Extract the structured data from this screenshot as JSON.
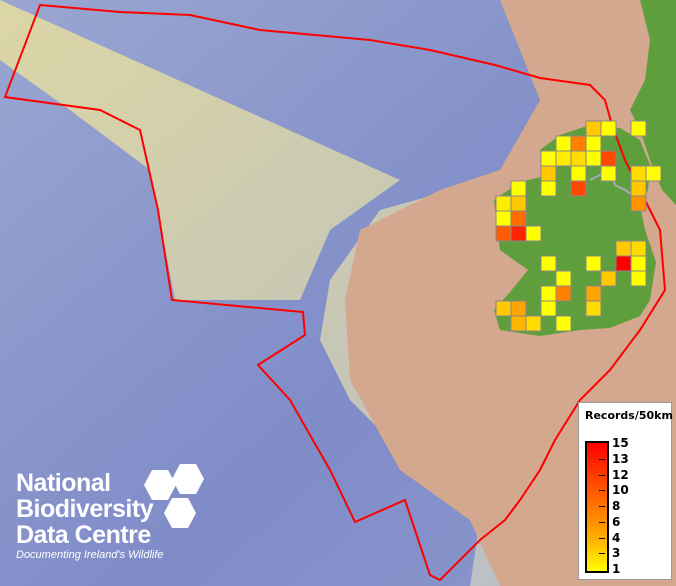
{
  "legend": {
    "title": "Records/50km",
    "ticks": [
      "15",
      "13",
      "12",
      "10",
      "8",
      "6",
      "4",
      "3",
      "1"
    ],
    "color_low": "#ffff00",
    "color_high": "#ff0000",
    "range": [
      1,
      15
    ]
  },
  "logo": {
    "line1": "National",
    "line2": "Biodiversity",
    "line3": "Data Centre",
    "tagline": "Documenting Ireland's Wildlife"
  },
  "map": {
    "boundary_color": "#ff0000",
    "land_color": "#5f9e3c",
    "grid_cells": [
      {
        "col": 6,
        "row": 0,
        "value": 4
      },
      {
        "col": 7,
        "row": 0,
        "value": 1
      },
      {
        "col": 9,
        "row": 0,
        "value": 1
      },
      {
        "col": 4,
        "row": 1,
        "value": 1
      },
      {
        "col": 5,
        "row": 1,
        "value": 8
      },
      {
        "col": 6,
        "row": 1,
        "value": 1
      },
      {
        "col": 3,
        "row": 2,
        "value": 1
      },
      {
        "col": 4,
        "row": 2,
        "value": 2
      },
      {
        "col": 5,
        "row": 2,
        "value": 3
      },
      {
        "col": 6,
        "row": 2,
        "value": 1
      },
      {
        "col": 7,
        "row": 2,
        "value": 11
      },
      {
        "col": 3,
        "row": 3,
        "value": 4
      },
      {
        "col": 5,
        "row": 3,
        "value": 1
      },
      {
        "col": 7,
        "row": 3,
        "value": 1
      },
      {
        "col": 9,
        "row": 3,
        "value": 3
      },
      {
        "col": 10,
        "row": 3,
        "value": 1
      },
      {
        "col": 1,
        "row": 4,
        "value": 1
      },
      {
        "col": 3,
        "row": 4,
        "value": 1
      },
      {
        "col": 5,
        "row": 4,
        "value": 11
      },
      {
        "col": 9,
        "row": 4,
        "value": 4
      },
      {
        "col": 0,
        "row": 5,
        "value": 2
      },
      {
        "col": 1,
        "row": 5,
        "value": 4
      },
      {
        "col": 9,
        "row": 5,
        "value": 7
      },
      {
        "col": 0,
        "row": 6,
        "value": 1
      },
      {
        "col": 1,
        "row": 6,
        "value": 9
      },
      {
        "col": 0,
        "row": 7,
        "value": 10
      },
      {
        "col": 1,
        "row": 7,
        "value": 13
      },
      {
        "col": 2,
        "row": 7,
        "value": 1
      },
      {
        "col": 8,
        "row": 8,
        "value": 4
      },
      {
        "col": 9,
        "row": 8,
        "value": 3
      },
      {
        "col": 3,
        "row": 9,
        "value": 1
      },
      {
        "col": 6,
        "row": 9,
        "value": 1
      },
      {
        "col": 8,
        "row": 9,
        "value": 15
      },
      {
        "col": 9,
        "row": 9,
        "value": 1
      },
      {
        "col": 4,
        "row": 10,
        "value": 1
      },
      {
        "col": 7,
        "row": 10,
        "value": 4
      },
      {
        "col": 9,
        "row": 10,
        "value": 1
      },
      {
        "col": 3,
        "row": 11,
        "value": 1
      },
      {
        "col": 4,
        "row": 11,
        "value": 8
      },
      {
        "col": 6,
        "row": 11,
        "value": 6
      },
      {
        "col": 0,
        "row": 12,
        "value": 4
      },
      {
        "col": 1,
        "row": 12,
        "value": 6
      },
      {
        "col": 3,
        "row": 12,
        "value": 1
      },
      {
        "col": 6,
        "row": 12,
        "value": 3
      },
      {
        "col": 1,
        "row": 13,
        "value": 5
      },
      {
        "col": 2,
        "row": 13,
        "value": 3
      },
      {
        "col": 4,
        "row": 13,
        "value": 1
      }
    ]
  }
}
